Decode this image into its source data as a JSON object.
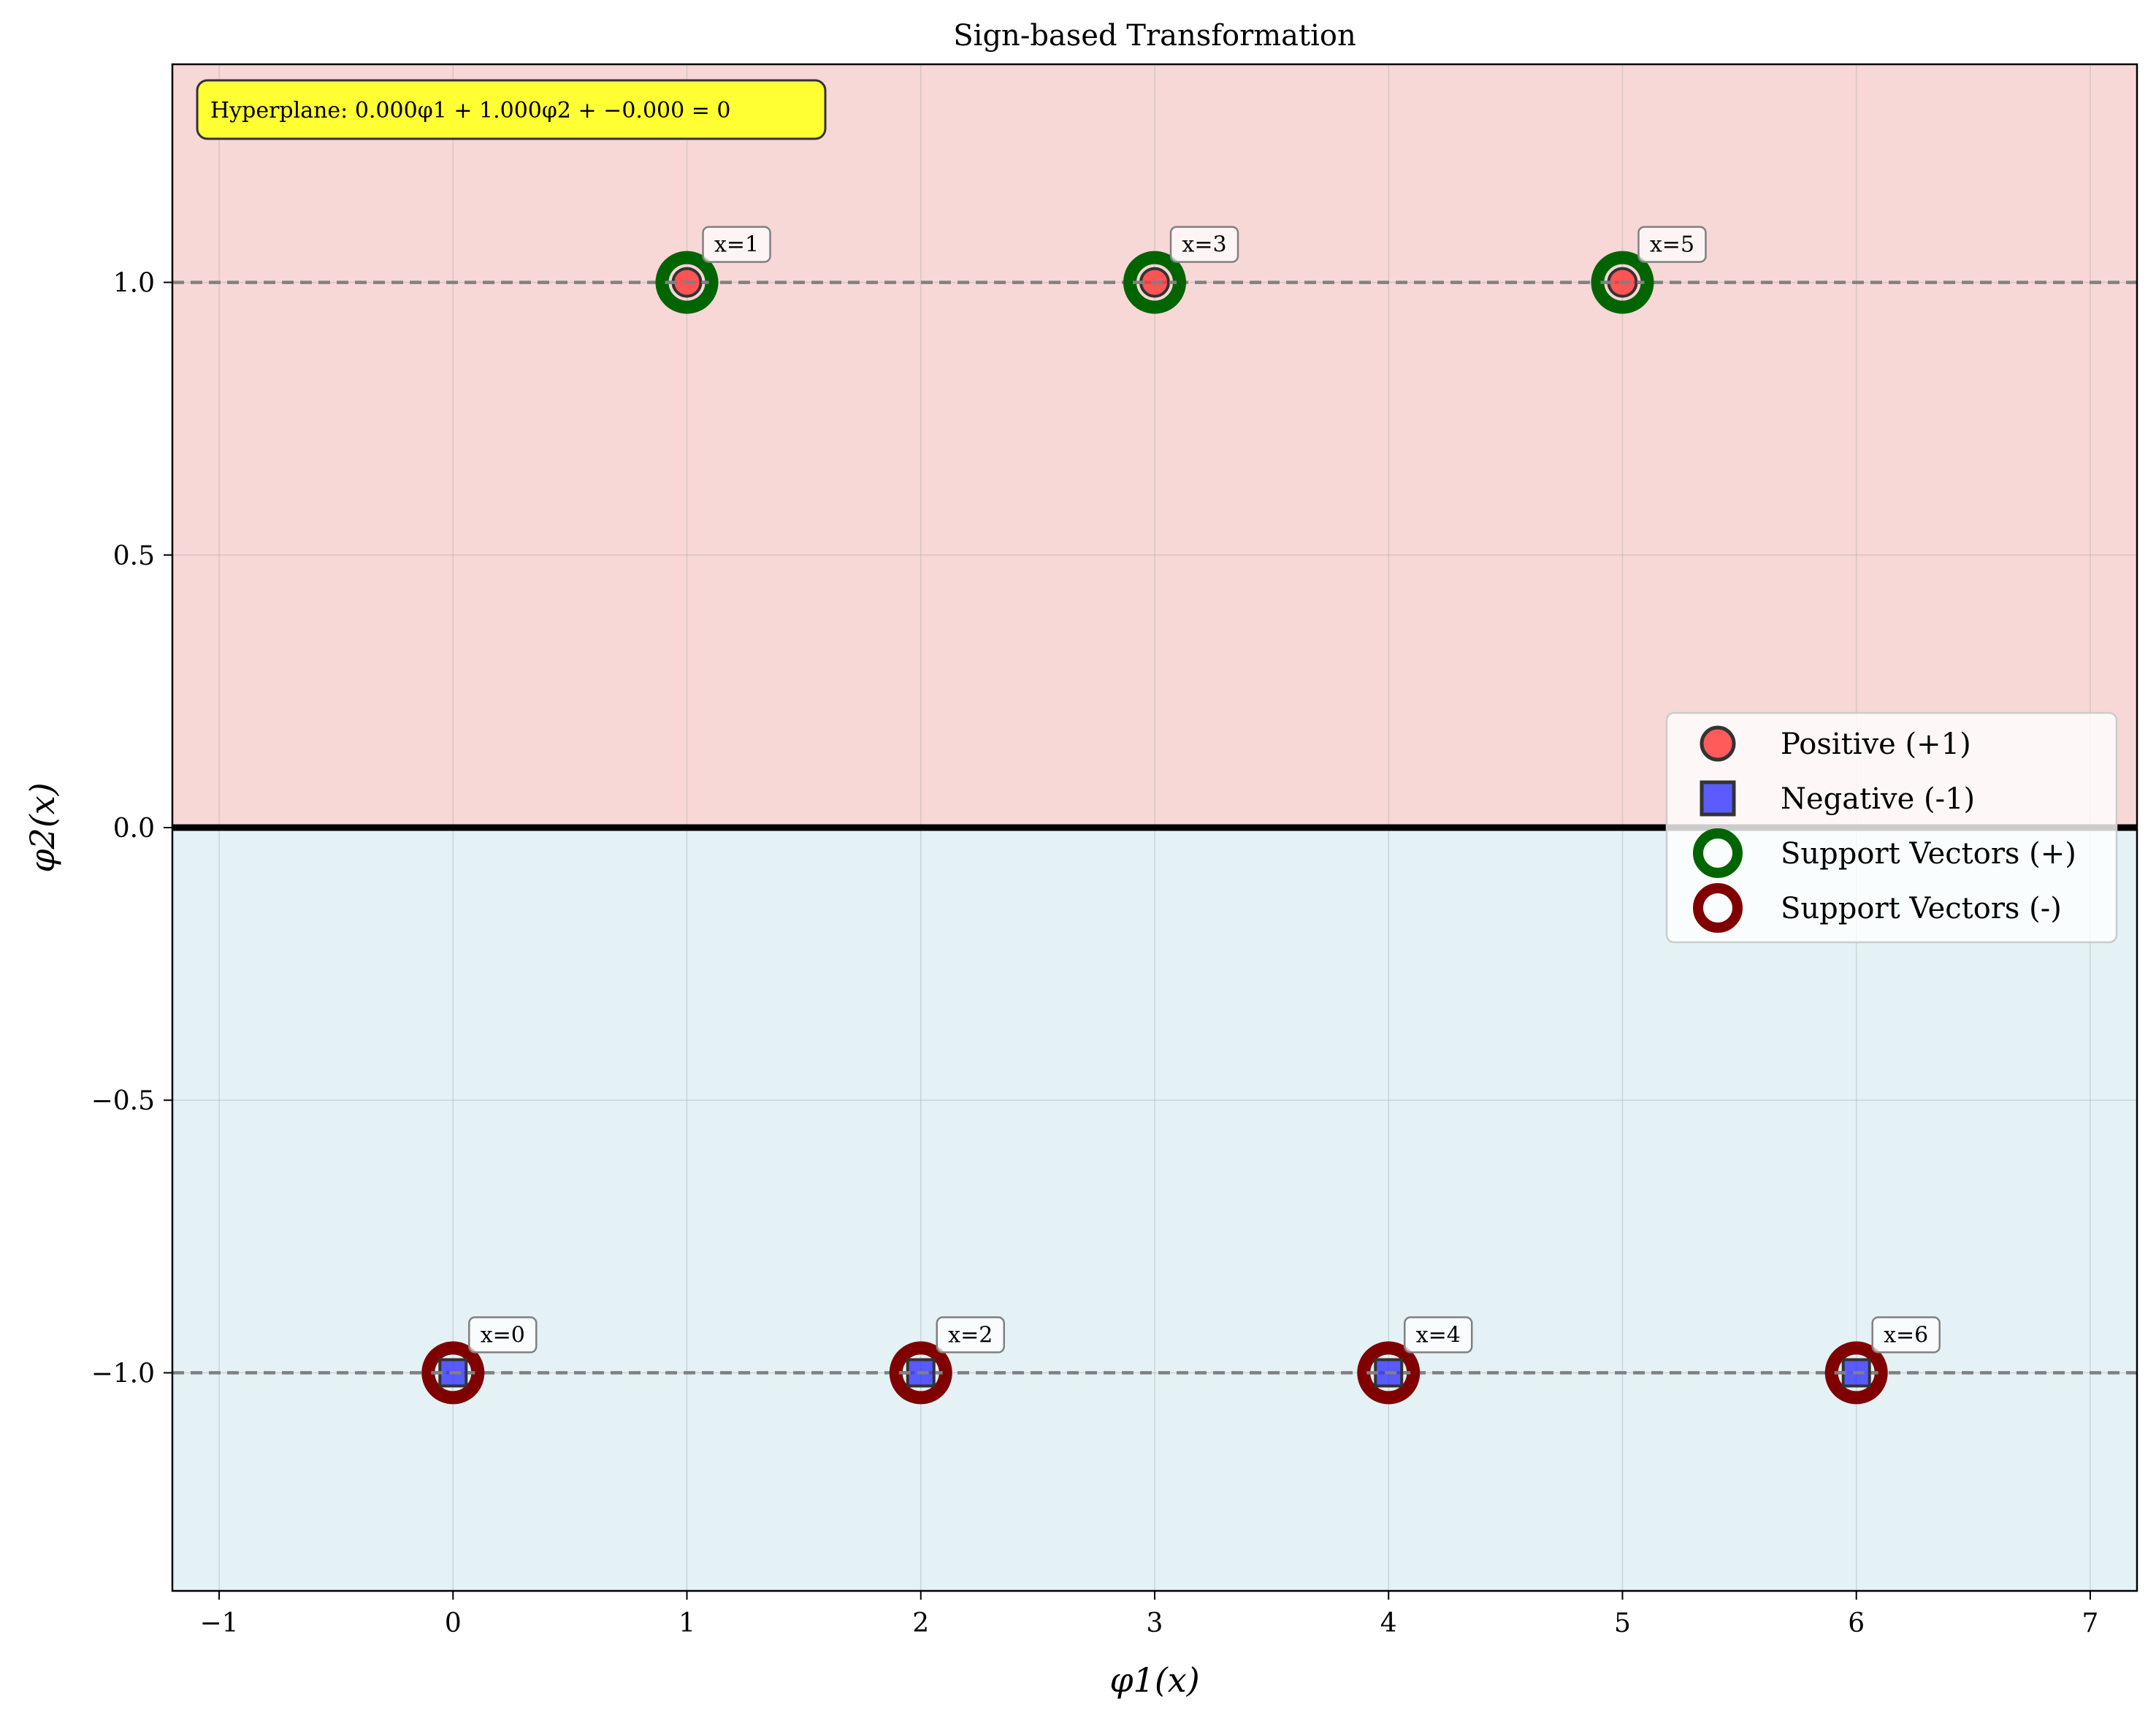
{
  "chart_data": {
    "type": "scatter",
    "title": "Sign-based Transformation",
    "xlabel": "φ1(x)",
    "ylabel": "φ2(x)",
    "xlim": [
      -1.2,
      7.2
    ],
    "ylim": [
      -1.4,
      1.4
    ],
    "xticks": [
      -1,
      0,
      1,
      2,
      3,
      4,
      5,
      6,
      7
    ],
    "xtick_labels": [
      "−1",
      "0",
      "1",
      "2",
      "3",
      "4",
      "5",
      "6",
      "7"
    ],
    "yticks": [
      1.0,
      0.5,
      0.0,
      -0.5,
      -1.0
    ],
    "ytick_labels": [
      "1.0",
      "0.5",
      "0.0",
      "−0.5",
      "−1.0"
    ],
    "grid": true,
    "legend_position": "center-right",
    "regions": [
      {
        "name": "positive region",
        "y_from": 0,
        "y_to": 1.4,
        "color": "#f8d7d7"
      },
      {
        "name": "negative region",
        "y_from": -1.4,
        "y_to": 0,
        "color": "#e4f2f6"
      }
    ],
    "hyperplane": {
      "y": 0,
      "color": "#000000"
    },
    "margins": [
      {
        "y": 1.0,
        "color": "#808080",
        "style": "dashed"
      },
      {
        "y": -1.0,
        "color": "#808080",
        "style": "dashed"
      }
    ],
    "series": [
      {
        "name": "Positive (+1)",
        "marker": "circle",
        "color": "#ff3333",
        "edge": "#333333",
        "points": [
          {
            "x": 1,
            "y": 1.0,
            "label": "x=1"
          },
          {
            "x": 3,
            "y": 1.0,
            "label": "x=3"
          },
          {
            "x": 5,
            "y": 1.0,
            "label": "x=5"
          }
        ]
      },
      {
        "name": "Negative (-1)",
        "marker": "square",
        "color": "#3333ff",
        "edge": "#333333",
        "points": [
          {
            "x": 0,
            "y": -1.0,
            "label": "x=0"
          },
          {
            "x": 2,
            "y": -1.0,
            "label": "x=2"
          },
          {
            "x": 4,
            "y": -1.0,
            "label": "x=4"
          },
          {
            "x": 6,
            "y": -1.0,
            "label": "x=6"
          }
        ]
      },
      {
        "name": "Support Vectors (+)",
        "marker": "ring",
        "color": "#006400",
        "points": [
          {
            "x": 1,
            "y": 1.0
          },
          {
            "x": 3,
            "y": 1.0
          },
          {
            "x": 5,
            "y": 1.0
          }
        ]
      },
      {
        "name": "Support Vectors (-)",
        "marker": "ring",
        "color": "#800000",
        "points": [
          {
            "x": 0,
            "y": -1.0
          },
          {
            "x": 2,
            "y": -1.0
          },
          {
            "x": 4,
            "y": -1.0
          },
          {
            "x": 6,
            "y": -1.0
          }
        ]
      }
    ],
    "annotation_box": {
      "text": "Hyperplane: 0.000φ1 + 1.000φ2 + −0.000 = 0",
      "background": "#ffff33"
    }
  }
}
